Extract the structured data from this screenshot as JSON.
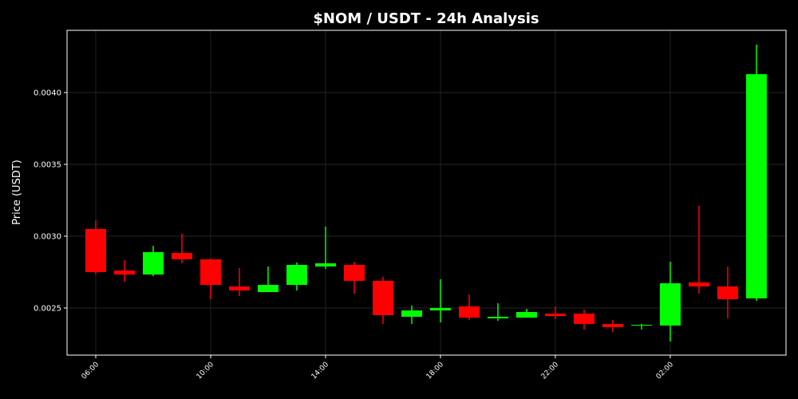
{
  "chart_data": {
    "type": "candlestick",
    "title": "$NOM / USDT - 24h Analysis",
    "y_label": "Price (USDT)",
    "categories": [
      "06:00",
      null,
      null,
      null,
      "10:00",
      null,
      null,
      null,
      "14:00",
      null,
      null,
      null,
      "18:00",
      null,
      null,
      null,
      "22:00",
      null,
      null,
      null,
      "02:00",
      null,
      null,
      null
    ],
    "open": [
      0.00305,
      0.002761,
      0.002733,
      0.002883,
      0.002839,
      0.00265,
      0.002611,
      0.002661,
      0.002789,
      0.0028,
      0.002689,
      0.002439,
      0.002483,
      0.002511,
      0.002428,
      0.002433,
      0.002461,
      0.002461,
      0.002389,
      0.002378,
      0.002378,
      0.002678,
      0.00265,
      0.002567
    ],
    "high": [
      0.00311,
      0.002833,
      0.002933,
      0.003017,
      0.002844,
      0.002778,
      0.002789,
      0.002817,
      0.003067,
      0.002822,
      0.002717,
      0.002517,
      0.0027,
      0.002594,
      0.002533,
      0.002494,
      0.002511,
      0.002489,
      0.002417,
      0.002389,
      0.002822,
      0.003211,
      0.002789,
      0.004333
    ],
    "low": [
      0.002733,
      0.002683,
      0.002722,
      0.002811,
      0.002561,
      0.002583,
      0.002611,
      0.002622,
      0.002772,
      0.0026,
      0.002389,
      0.002389,
      0.0024,
      0.002417,
      0.002411,
      0.002433,
      0.002422,
      0.00235,
      0.002333,
      0.00235,
      0.002267,
      0.0026,
      0.002428,
      0.00255
    ],
    "close": [
      0.00275,
      0.002733,
      0.002889,
      0.002839,
      0.002661,
      0.002622,
      0.002661,
      0.0028,
      0.002811,
      0.002689,
      0.00245,
      0.002483,
      0.0025,
      0.002433,
      0.002439,
      0.002472,
      0.002444,
      0.002389,
      0.002367,
      0.002383,
      0.002672,
      0.00265,
      0.002561,
      0.004128
    ],
    "up_color": "#00ff00",
    "down_color": "#ff0000",
    "ylim": [
      0.002172,
      0.004433
    ],
    "yticks": [
      0.0025,
      {
        "value": 0.003,
        "label": "0.0030"
      },
      0.0035,
      {
        "value": 0.004,
        "label": "0.0040"
      }
    ],
    "grid": true
  }
}
